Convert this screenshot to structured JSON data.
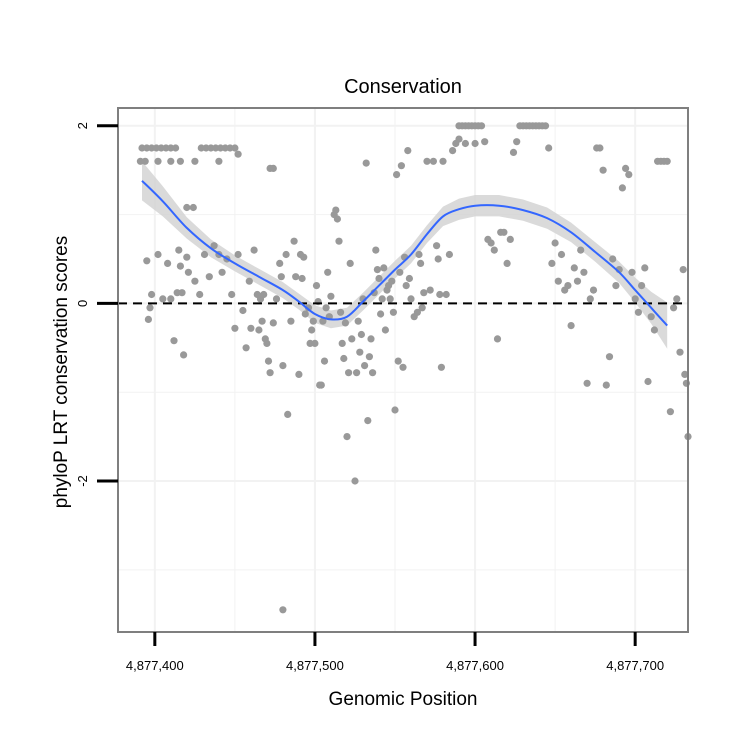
{
  "chart_data": {
    "type": "scatter",
    "title": "Conservation",
    "xlabel": "Genomic Position",
    "ylabel": "phyloP LRT conservation scores",
    "xlim": [
      4877377,
      4877733
    ],
    "ylim": [
      -3.7,
      2.2
    ],
    "xticks": [
      4877400,
      4877500,
      4877600,
      4877700
    ],
    "xtick_labels": [
      "4,877,400",
      "4,877,500",
      "4,877,600",
      "4,877,700"
    ],
    "yticks": [
      2,
      0,
      -2
    ],
    "ytick_labels": [
      "2",
      "0",
      "-2"
    ],
    "grid": true,
    "reference_line": {
      "y": 0,
      "style": "dashed"
    },
    "colors": {
      "points": "#999999",
      "smooth_line": "#3366ff",
      "confidence_band": "#d3d3d3",
      "grid": "#f2f2f2",
      "panel_border": "#7f7f7f"
    },
    "series": [
      {
        "type": "scatter",
        "points": [
          [
            4877392,
            1.75
          ],
          [
            4877395,
            1.75
          ],
          [
            4877398,
            1.75
          ],
          [
            4877401,
            1.75
          ],
          [
            4877404,
            1.75
          ],
          [
            4877407,
            1.75
          ],
          [
            4877410,
            1.75
          ],
          [
            4877413,
            1.75
          ],
          [
            4877429,
            1.75
          ],
          [
            4877432,
            1.75
          ],
          [
            4877435,
            1.75
          ],
          [
            4877438,
            1.75
          ],
          [
            4877441,
            1.75
          ],
          [
            4877444,
            1.75
          ],
          [
            4877447,
            1.75
          ],
          [
            4877450,
            1.75
          ],
          [
            4877391,
            1.6
          ],
          [
            4877394,
            1.6
          ],
          [
            4877402,
            1.6
          ],
          [
            4877410,
            1.6
          ],
          [
            4877416,
            1.6
          ],
          [
            4877425,
            1.6
          ],
          [
            4877440,
            1.6
          ],
          [
            4877452,
            1.68
          ],
          [
            4877472,
            1.52
          ],
          [
            4877474,
            1.52
          ],
          [
            4877420,
            1.08
          ],
          [
            4877424,
            1.08
          ],
          [
            4877395,
            0.48
          ],
          [
            4877398,
            0.1
          ],
          [
            4877396,
            -0.18
          ],
          [
            4877397,
            -0.05
          ],
          [
            4877402,
            0.55
          ],
          [
            4877405,
            0.05
          ],
          [
            4877408,
            0.45
          ],
          [
            4877410,
            0.05
          ],
          [
            4877412,
            -0.42
          ],
          [
            4877414,
            0.12
          ],
          [
            4877415,
            0.6
          ],
          [
            4877416,
            0.42
          ],
          [
            4877417,
            0.12
          ],
          [
            4877418,
            -0.58
          ],
          [
            4877420,
            0.52
          ],
          [
            4877421,
            0.35
          ],
          [
            4877425,
            0.25
          ],
          [
            4877428,
            0.1
          ],
          [
            4877431,
            0.55
          ],
          [
            4877434,
            0.3
          ],
          [
            4877437,
            0.65
          ],
          [
            4877440,
            0.55
          ],
          [
            4877442,
            0.35
          ],
          [
            4877445,
            0.5
          ],
          [
            4877448,
            0.1
          ],
          [
            4877450,
            -0.28
          ],
          [
            4877452,
            0.55
          ],
          [
            4877455,
            -0.08
          ],
          [
            4877457,
            -0.5
          ],
          [
            4877459,
            0.25
          ],
          [
            4877460,
            -0.28
          ],
          [
            4877462,
            0.6
          ],
          [
            4877464,
            0.1
          ],
          [
            4877465,
            -0.3
          ],
          [
            4877466,
            0.05
          ],
          [
            4877467,
            -0.2
          ],
          [
            4877468,
            0.1
          ],
          [
            4877469,
            -0.4
          ],
          [
            4877470,
            -0.45
          ],
          [
            4877471,
            -0.65
          ],
          [
            4877472,
            -0.78
          ],
          [
            4877474,
            -0.22
          ],
          [
            4877476,
            0.05
          ],
          [
            4877478,
            0.45
          ],
          [
            4877479,
            0.3
          ],
          [
            4877480,
            -0.7
          ],
          [
            4877482,
            0.55
          ],
          [
            4877483,
            -1.25
          ],
          [
            4877485,
            -0.2
          ],
          [
            4877487,
            0.7
          ],
          [
            4877488,
            0.3
          ],
          [
            4877490,
            -0.8
          ],
          [
            4877491,
            0.55
          ],
          [
            4877492,
            0.28
          ],
          [
            4877493,
            0.52
          ],
          [
            4877494,
            -0.12
          ],
          [
            4877496,
            -0.05
          ],
          [
            4877497,
            -0.45
          ],
          [
            4877498,
            -0.3
          ],
          [
            4877499,
            -0.2
          ],
          [
            4877500,
            -0.45
          ],
          [
            4877501,
            0.2
          ],
          [
            4877502,
            0.02
          ],
          [
            4877503,
            -0.92
          ],
          [
            4877504,
            -0.92
          ],
          [
            4877505,
            -0.2
          ],
          [
            4877506,
            -0.65
          ],
          [
            4877507,
            -0.05
          ],
          [
            4877508,
            0.35
          ],
          [
            4877509,
            -0.15
          ],
          [
            4877510,
            0.08
          ],
          [
            4877512,
            1.0
          ],
          [
            4877513,
            1.05
          ],
          [
            4877514,
            0.95
          ],
          [
            4877515,
            0.7
          ],
          [
            4877516,
            -0.1
          ],
          [
            4877517,
            -0.45
          ],
          [
            4877518,
            -0.62
          ],
          [
            4877519,
            -0.22
          ],
          [
            4877520,
            -1.5
          ],
          [
            4877521,
            -0.78
          ],
          [
            4877522,
            0.45
          ],
          [
            4877523,
            -0.4
          ],
          [
            4877525,
            -2.0
          ],
          [
            4877526,
            -0.78
          ],
          [
            4877527,
            -0.2
          ],
          [
            4877528,
            -0.55
          ],
          [
            4877529,
            -0.35
          ],
          [
            4877530,
            0.05
          ],
          [
            4877531,
            -0.7
          ],
          [
            4877532,
            1.58
          ],
          [
            4877533,
            -1.32
          ],
          [
            4877534,
            -0.6
          ],
          [
            4877535,
            -0.4
          ],
          [
            4877536,
            -0.78
          ],
          [
            4877537,
            0.12
          ],
          [
            4877538,
            0.6
          ],
          [
            4877539,
            0.38
          ],
          [
            4877540,
            0.28
          ],
          [
            4877541,
            -0.12
          ],
          [
            4877542,
            0.05
          ],
          [
            4877543,
            0.4
          ],
          [
            4877544,
            -0.3
          ],
          [
            4877545,
            0.15
          ],
          [
            4877546,
            0.2
          ],
          [
            4877547,
            0.05
          ],
          [
            4877548,
            0.25
          ],
          [
            4877549,
            -0.1
          ],
          [
            4877550,
            -1.2
          ],
          [
            4877551,
            1.45
          ],
          [
            4877552,
            -0.65
          ],
          [
            4877553,
            0.35
          ],
          [
            4877554,
            1.55
          ],
          [
            4877555,
            -0.72
          ],
          [
            4877556,
            0.52
          ],
          [
            4877557,
            0.2
          ],
          [
            4877558,
            1.72
          ],
          [
            4877559,
            0.28
          ],
          [
            4877560,
            0.05
          ],
          [
            4877562,
            -0.15
          ],
          [
            4877564,
            -0.1
          ],
          [
            4877565,
            0.55
          ],
          [
            4877566,
            0.45
          ],
          [
            4877567,
            -0.05
          ],
          [
            4877568,
            0.12
          ],
          [
            4877570,
            1.6
          ],
          [
            4877572,
            0.15
          ],
          [
            4877574,
            1.6
          ],
          [
            4877576,
            0.65
          ],
          [
            4877577,
            0.5
          ],
          [
            4877578,
            0.1
          ],
          [
            4877579,
            -0.72
          ],
          [
            4877580,
            1.6
          ],
          [
            4877582,
            0.1
          ],
          [
            4877584,
            0.55
          ],
          [
            4877586,
            1.72
          ],
          [
            4877588,
            1.8
          ],
          [
            4877590,
            2.0
          ],
          [
            4877592,
            2.0
          ],
          [
            4877594,
            2.0
          ],
          [
            4877596,
            2.0
          ],
          [
            4877598,
            2.0
          ],
          [
            4877600,
            2.0
          ],
          [
            4877602,
            2.0
          ],
          [
            4877604,
            2.0
          ],
          [
            4877590,
            1.85
          ],
          [
            4877594,
            1.8
          ],
          [
            4877600,
            1.8
          ],
          [
            4877606,
            1.82
          ],
          [
            4877608,
            0.72
          ],
          [
            4877610,
            0.68
          ],
          [
            4877612,
            0.6
          ],
          [
            4877614,
            -0.4
          ],
          [
            4877616,
            0.8
          ],
          [
            4877618,
            0.8
          ],
          [
            4877620,
            0.45
          ],
          [
            4877622,
            0.72
          ],
          [
            4877624,
            1.7
          ],
          [
            4877626,
            1.82
          ],
          [
            4877628,
            2.0
          ],
          [
            4877630,
            2.0
          ],
          [
            4877632,
            2.0
          ],
          [
            4877634,
            2.0
          ],
          [
            4877636,
            2.0
          ],
          [
            4877638,
            2.0
          ],
          [
            4877640,
            2.0
          ],
          [
            4877642,
            2.0
          ],
          [
            4877644,
            2.0
          ],
          [
            4877646,
            1.75
          ],
          [
            4877648,
            0.45
          ],
          [
            4877650,
            0.68
          ],
          [
            4877652,
            0.25
          ],
          [
            4877654,
            0.55
          ],
          [
            4877656,
            0.15
          ],
          [
            4877658,
            0.2
          ],
          [
            4877660,
            -0.25
          ],
          [
            4877662,
            0.4
          ],
          [
            4877664,
            0.25
          ],
          [
            4877666,
            0.6
          ],
          [
            4877668,
            0.35
          ],
          [
            4877670,
            -0.9
          ],
          [
            4877672,
            0.05
          ],
          [
            4877674,
            0.15
          ],
          [
            4877676,
            1.75
          ],
          [
            4877678,
            1.75
          ],
          [
            4877680,
            1.5
          ],
          [
            4877682,
            -0.92
          ],
          [
            4877684,
            -0.6
          ],
          [
            4877686,
            0.5
          ],
          [
            4877688,
            0.2
          ],
          [
            4877690,
            0.38
          ],
          [
            4877692,
            1.3
          ],
          [
            4877694,
            1.52
          ],
          [
            4877696,
            1.45
          ],
          [
            4877698,
            0.35
          ],
          [
            4877700,
            0.05
          ],
          [
            4877702,
            -0.1
          ],
          [
            4877704,
            0.2
          ],
          [
            4877706,
            0.4
          ],
          [
            4877708,
            -0.88
          ],
          [
            4877710,
            -0.15
          ],
          [
            4877712,
            -0.3
          ],
          [
            4877714,
            1.6
          ],
          [
            4877716,
            1.6
          ],
          [
            4877718,
            1.6
          ],
          [
            4877720,
            1.6
          ],
          [
            4877722,
            -1.22
          ],
          [
            4877724,
            -0.05
          ],
          [
            4877726,
            0.05
          ],
          [
            4877728,
            -0.55
          ],
          [
            4877730,
            0.38
          ],
          [
            4877731,
            -0.8
          ],
          [
            4877732,
            -0.9
          ],
          [
            4877733,
            -1.5
          ],
          [
            4877480,
            -3.45
          ]
        ]
      },
      {
        "type": "smooth",
        "points": [
          [
            4877392,
            1.38
          ],
          [
            4877405,
            1.15
          ],
          [
            4877420,
            0.85
          ],
          [
            4877435,
            0.62
          ],
          [
            4877450,
            0.45
          ],
          [
            4877465,
            0.3
          ],
          [
            4877480,
            0.15
          ],
          [
            4877490,
            0.02
          ],
          [
            4877500,
            -0.12
          ],
          [
            4877510,
            -0.18
          ],
          [
            4877520,
            -0.15
          ],
          [
            4877530,
            0.02
          ],
          [
            4877540,
            0.2
          ],
          [
            4877550,
            0.38
          ],
          [
            4877560,
            0.55
          ],
          [
            4877570,
            0.78
          ],
          [
            4877580,
            0.98
          ],
          [
            4877590,
            1.06
          ],
          [
            4877600,
            1.1
          ],
          [
            4877615,
            1.1
          ],
          [
            4877630,
            1.05
          ],
          [
            4877645,
            0.96
          ],
          [
            4877660,
            0.8
          ],
          [
            4877675,
            0.58
          ],
          [
            4877690,
            0.35
          ],
          [
            4877700,
            0.15
          ],
          [
            4877710,
            -0.05
          ],
          [
            4877720,
            -0.25
          ]
        ],
        "ci_half_width": [
          0.22,
          0.17,
          0.12,
          0.1,
          0.09,
          0.09,
          0.09,
          0.09,
          0.1,
          0.1,
          0.1,
          0.1,
          0.1,
          0.1,
          0.1,
          0.1,
          0.11,
          0.12,
          0.12,
          0.12,
          0.12,
          0.12,
          0.11,
          0.11,
          0.12,
          0.14,
          0.18,
          0.26
        ]
      }
    ]
  }
}
